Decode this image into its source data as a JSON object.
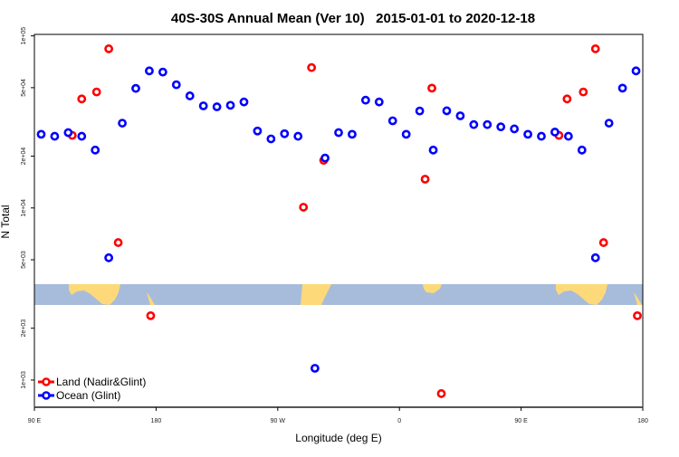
{
  "chart_data": {
    "type": "scatter",
    "title": "40S-30S Annual Mean (Ver 10)   2015-01-01 to 2020-12-18",
    "xlabel": "Longitude (deg E)",
    "ylabel": "N Total",
    "y_scale": "log",
    "xlim": [
      90,
      540
    ],
    "ylim": [
      695,
      102000
    ],
    "x_ticks": [
      90,
      180,
      270,
      360,
      450,
      540
    ],
    "x_tick_labels": [
      "90 E",
      "180",
      "90 W",
      "0",
      "90 E",
      "180"
    ],
    "y_ticks": [
      100000,
      50000,
      20000,
      10000,
      5000,
      2000,
      1000
    ],
    "y_tick_labels": [
      "1e+05",
      "5e+04",
      "2e+04",
      "1e+04",
      "5e+03",
      "2e+03",
      "1e+03"
    ],
    "grid": false,
    "legend_position": "bottom-left",
    "background_map": "latitude band 40S-30S land/ocean strip",
    "map_colors": {
      "ocean": "#a7bcdb",
      "land": "#fdd97a"
    },
    "series": [
      {
        "name": "Land (Nadir&Glint)",
        "color": "#ff0000",
        "x": [
          118,
          125,
          136,
          145,
          152,
          176,
          289,
          295,
          304,
          379,
          384,
          391,
          478,
          484,
          496,
          505,
          511,
          536
        ],
        "y": [
          26400,
          43000,
          47200,
          84100,
          6290,
          2365,
          10100,
          65400,
          18900,
          14700,
          49700,
          834,
          26400,
          43000,
          47200,
          84100,
          6290,
          2365
        ]
      },
      {
        "name": "Ocean (Glint)",
        "color": "#0000ff",
        "x": [
          95,
          105,
          115,
          125,
          135,
          145,
          155,
          165,
          175,
          185,
          195,
          205,
          215,
          225,
          235,
          245,
          255,
          265,
          275,
          285,
          297.5,
          305,
          315,
          325,
          335,
          345,
          355,
          365,
          375,
          385,
          395,
          405,
          415,
          425,
          435,
          445,
          455,
          465,
          475,
          485,
          495,
          505,
          515,
          525,
          535
        ],
        "y": [
          26800,
          26100,
          27400,
          26100,
          21700,
          5135,
          31100,
          49500,
          62600,
          61600,
          52000,
          44800,
          39200,
          38700,
          39500,
          41300,
          28000,
          25200,
          27000,
          26100,
          1170,
          19500,
          27400,
          26800,
          42300,
          41300,
          32100,
          26800,
          36600,
          21700,
          36700,
          34300,
          30500,
          30500,
          29600,
          28800,
          26800,
          26100,
          27600,
          26100,
          21700,
          5135,
          31100,
          49700,
          62600
        ]
      }
    ]
  }
}
